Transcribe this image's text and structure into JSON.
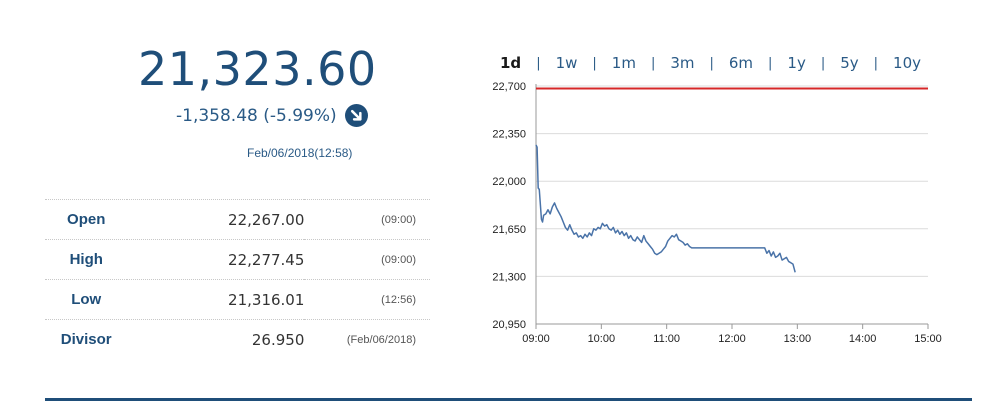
{
  "quote": {
    "price": "21,323.60",
    "change": "-1,358.48 (-5.99%)",
    "timestamp": "Feb/06/2018(12:58)",
    "direction_icon": "down-right-arrow-icon",
    "color": "#1f4e79"
  },
  "stats": [
    {
      "label": "Open",
      "value": "22,267.00",
      "time": "(09:00)"
    },
    {
      "label": "High",
      "value": "22,277.45",
      "time": "(09:00)"
    },
    {
      "label": "Low",
      "value": "21,316.01",
      "time": "(12:56)"
    },
    {
      "label": "Divisor",
      "value": "26.950",
      "time": "(Feb/06/2018)"
    }
  ],
  "range_tabs": [
    {
      "label": "1d",
      "active": true
    },
    {
      "label": "1w",
      "active": false
    },
    {
      "label": "1m",
      "active": false
    },
    {
      "label": "3m",
      "active": false
    },
    {
      "label": "6m",
      "active": false
    },
    {
      "label": "1y",
      "active": false
    },
    {
      "label": "5y",
      "active": false
    },
    {
      "label": "10y",
      "active": false
    }
  ],
  "chart_data": {
    "type": "line",
    "title": "",
    "xlabel": "",
    "ylabel": "",
    "xlim": [
      "09:00",
      "15:00"
    ],
    "ylim": [
      20950,
      22700
    ],
    "x_ticks": [
      "09:00",
      "10:00",
      "11:00",
      "12:00",
      "13:00",
      "14:00",
      "15:00"
    ],
    "y_ticks": [
      "22,700",
      "22,350",
      "22,000",
      "21,650",
      "21,300",
      "20,950"
    ],
    "y_tick_values": [
      22700,
      22350,
      22000,
      21650,
      21300,
      20950
    ],
    "grid": true,
    "reference_line": {
      "value": 22682,
      "color": "#d62728"
    },
    "series": [
      {
        "color": "#4a73a8",
        "x": [
          "09:00",
          "09:01",
          "09:02",
          "09:03",
          "09:05",
          "09:06",
          "09:07",
          "09:09",
          "09:11",
          "09:13",
          "09:15",
          "09:17",
          "09:19",
          "09:21",
          "09:23",
          "09:25",
          "09:27",
          "09:29",
          "09:31",
          "09:33",
          "09:35",
          "09:37",
          "09:39",
          "09:41",
          "09:43",
          "09:45",
          "09:47",
          "09:49",
          "09:51",
          "09:53",
          "09:55",
          "09:57",
          "09:59",
          "10:01",
          "10:03",
          "10:05",
          "10:07",
          "10:09",
          "10:11",
          "10:13",
          "10:15",
          "10:17",
          "10:19",
          "10:21",
          "10:23",
          "10:25",
          "10:27",
          "10:29",
          "10:31",
          "10:33",
          "10:35",
          "10:37",
          "10:39",
          "10:41",
          "10:43",
          "10:45",
          "10:47",
          "10:49",
          "10:51",
          "10:53",
          "10:55",
          "10:57",
          "10:59",
          "11:01",
          "11:03",
          "11:05",
          "11:07",
          "11:09",
          "11:11",
          "11:13",
          "11:15",
          "11:17",
          "11:19",
          "11:21",
          "11:23",
          "11:25",
          "11:30",
          "11:45",
          "12:00",
          "12:15",
          "12:30",
          "12:32",
          "12:34",
          "12:36",
          "12:38",
          "12:40",
          "12:42",
          "12:44",
          "12:46",
          "12:48",
          "12:50",
          "12:52",
          "12:54",
          "12:56",
          "12:58"
        ],
        "y": [
          22267,
          22250,
          21950,
          21940,
          21720,
          21700,
          21750,
          21760,
          21790,
          21760,
          21810,
          21840,
          21800,
          21770,
          21740,
          21700,
          21660,
          21640,
          21680,
          21640,
          21610,
          21620,
          21590,
          21600,
          21580,
          21610,
          21590,
          21620,
          21600,
          21650,
          21640,
          21660,
          21650,
          21690,
          21670,
          21680,
          21650,
          21640,
          21660,
          21620,
          21640,
          21610,
          21630,
          21600,
          21620,
          21580,
          21600,
          21570,
          21560,
          21590,
          21570,
          21550,
          21600,
          21560,
          21540,
          21520,
          21500,
          21470,
          21460,
          21470,
          21480,
          21500,
          21520,
          21560,
          21580,
          21600,
          21590,
          21610,
          21570,
          21560,
          21550,
          21530,
          21540,
          21520,
          21510,
          21510,
          21510,
          21510,
          21510,
          21510,
          21510,
          21470,
          21490,
          21450,
          21480,
          21440,
          21450,
          21470,
          21420,
          21430,
          21440,
          21410,
          21400,
          21390,
          21330
        ]
      }
    ]
  }
}
